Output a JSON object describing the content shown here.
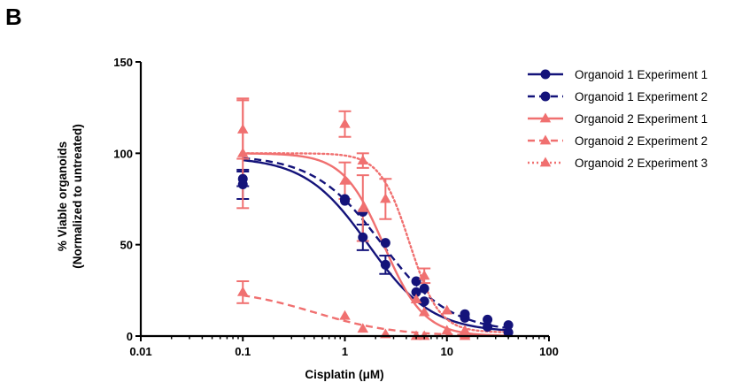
{
  "panel_label": "B",
  "chart_data": {
    "type": "scatter",
    "title": "",
    "xlabel": "Cisplatin (μM)",
    "ylabel_line1": "% Viable organoids",
    "ylabel_line2": "(Normalized to untreated)",
    "xscale": "log",
    "xlim": [
      0.01,
      100
    ],
    "ylim": [
      0,
      150
    ],
    "x_ticks": [
      0.01,
      0.1,
      1,
      10,
      100
    ],
    "x_tick_labels": [
      "0.01",
      "0.1",
      "1",
      "10",
      "100"
    ],
    "y_ticks": [
      0,
      50,
      100,
      150
    ],
    "y_tick_labels": [
      "0",
      "50",
      "100",
      "150"
    ],
    "grid": false,
    "legend_position": "right",
    "series": [
      {
        "name": "Organoid 1 Experiment 1",
        "color": "#14137a",
        "marker": "circle",
        "line_style": "solid",
        "points": [
          {
            "x": 0.1,
            "y": 83,
            "err": 8
          },
          {
            "x": 1,
            "y": 74,
            "err": 0
          },
          {
            "x": 1.5,
            "y": 54,
            "err": 7
          },
          {
            "x": 2.5,
            "y": 39,
            "err": 5
          },
          {
            "x": 5,
            "y": 24,
            "err": 0
          },
          {
            "x": 6,
            "y": 19,
            "err": 0
          },
          {
            "x": 15,
            "y": 10,
            "err": 0
          },
          {
            "x": 25,
            "y": 5,
            "err": 0
          },
          {
            "x": 40,
            "y": 2,
            "err": 0
          }
        ],
        "curve": {
          "top": 98,
          "bottom": 2,
          "ec50": 1.7,
          "hill": 1.4
        }
      },
      {
        "name": "Organoid 1 Experiment 2",
        "color": "#14137a",
        "marker": "circle",
        "line_style": "dashed",
        "points": [
          {
            "x": 0.1,
            "y": 86,
            "err": 4
          },
          {
            "x": 1,
            "y": 75,
            "err": 0
          },
          {
            "x": 1.5,
            "y": 68,
            "err": 0
          },
          {
            "x": 2.5,
            "y": 51,
            "err": 0
          },
          {
            "x": 5,
            "y": 30,
            "err": 0
          },
          {
            "x": 6,
            "y": 26,
            "err": 0
          },
          {
            "x": 15,
            "y": 12,
            "err": 0
          },
          {
            "x": 25,
            "y": 9,
            "err": 0
          },
          {
            "x": 40,
            "y": 6,
            "err": 0
          }
        ],
        "curve": {
          "top": 99,
          "bottom": 2,
          "ec50": 2.3,
          "hill": 1.3
        }
      },
      {
        "name": "Organoid 2 Experiment 1",
        "color": "#f07070",
        "marker": "triangle",
        "line_style": "solid",
        "points": [
          {
            "x": 0.1,
            "y": 113,
            "err": 16
          },
          {
            "x": 1,
            "y": 85,
            "err": 10
          },
          {
            "x": 1.5,
            "y": 70,
            "err": 18
          },
          {
            "x": 5,
            "y": 20,
            "err": 0
          },
          {
            "x": 6,
            "y": 13,
            "err": 0
          },
          {
            "x": 10,
            "y": 3,
            "err": 0
          },
          {
            "x": 15,
            "y": 1,
            "err": 0
          }
        ],
        "curve": {
          "top": 100,
          "bottom": 0,
          "ec50": 2.4,
          "hill": 2.2
        }
      },
      {
        "name": "Organoid 2 Experiment 2",
        "color": "#f07070",
        "marker": "triangle",
        "line_style": "dashed",
        "points": [
          {
            "x": 0.1,
            "y": 24,
            "err": 6
          },
          {
            "x": 1,
            "y": 11,
            "err": 0
          },
          {
            "x": 1.5,
            "y": 4,
            "err": 0
          },
          {
            "x": 2.5,
            "y": 1,
            "err": 0
          },
          {
            "x": 5,
            "y": 0,
            "err": 0
          },
          {
            "x": 6,
            "y": 0,
            "err": 0
          },
          {
            "x": 15,
            "y": 0,
            "err": 0
          }
        ],
        "curve": {
          "top": 26,
          "bottom": 0,
          "ec50": 0.5,
          "hill": 1.1
        }
      },
      {
        "name": "Organoid 2 Experiment 3",
        "color": "#f07070",
        "marker": "triangle",
        "line_style": "dotted",
        "points": [
          {
            "x": 0.1,
            "y": 100,
            "err": 30
          },
          {
            "x": 1,
            "y": 116,
            "err": 7
          },
          {
            "x": 1.5,
            "y": 96,
            "err": 4
          },
          {
            "x": 2.5,
            "y": 75,
            "err": 11
          },
          {
            "x": 6,
            "y": 33,
            "err": 4
          },
          {
            "x": 10,
            "y": 14,
            "err": 0
          },
          {
            "x": 15,
            "y": 3,
            "err": 0
          }
        ],
        "curve": {
          "top": 100,
          "bottom": 2,
          "ec50": 4.3,
          "hill": 3.0
        }
      }
    ]
  }
}
